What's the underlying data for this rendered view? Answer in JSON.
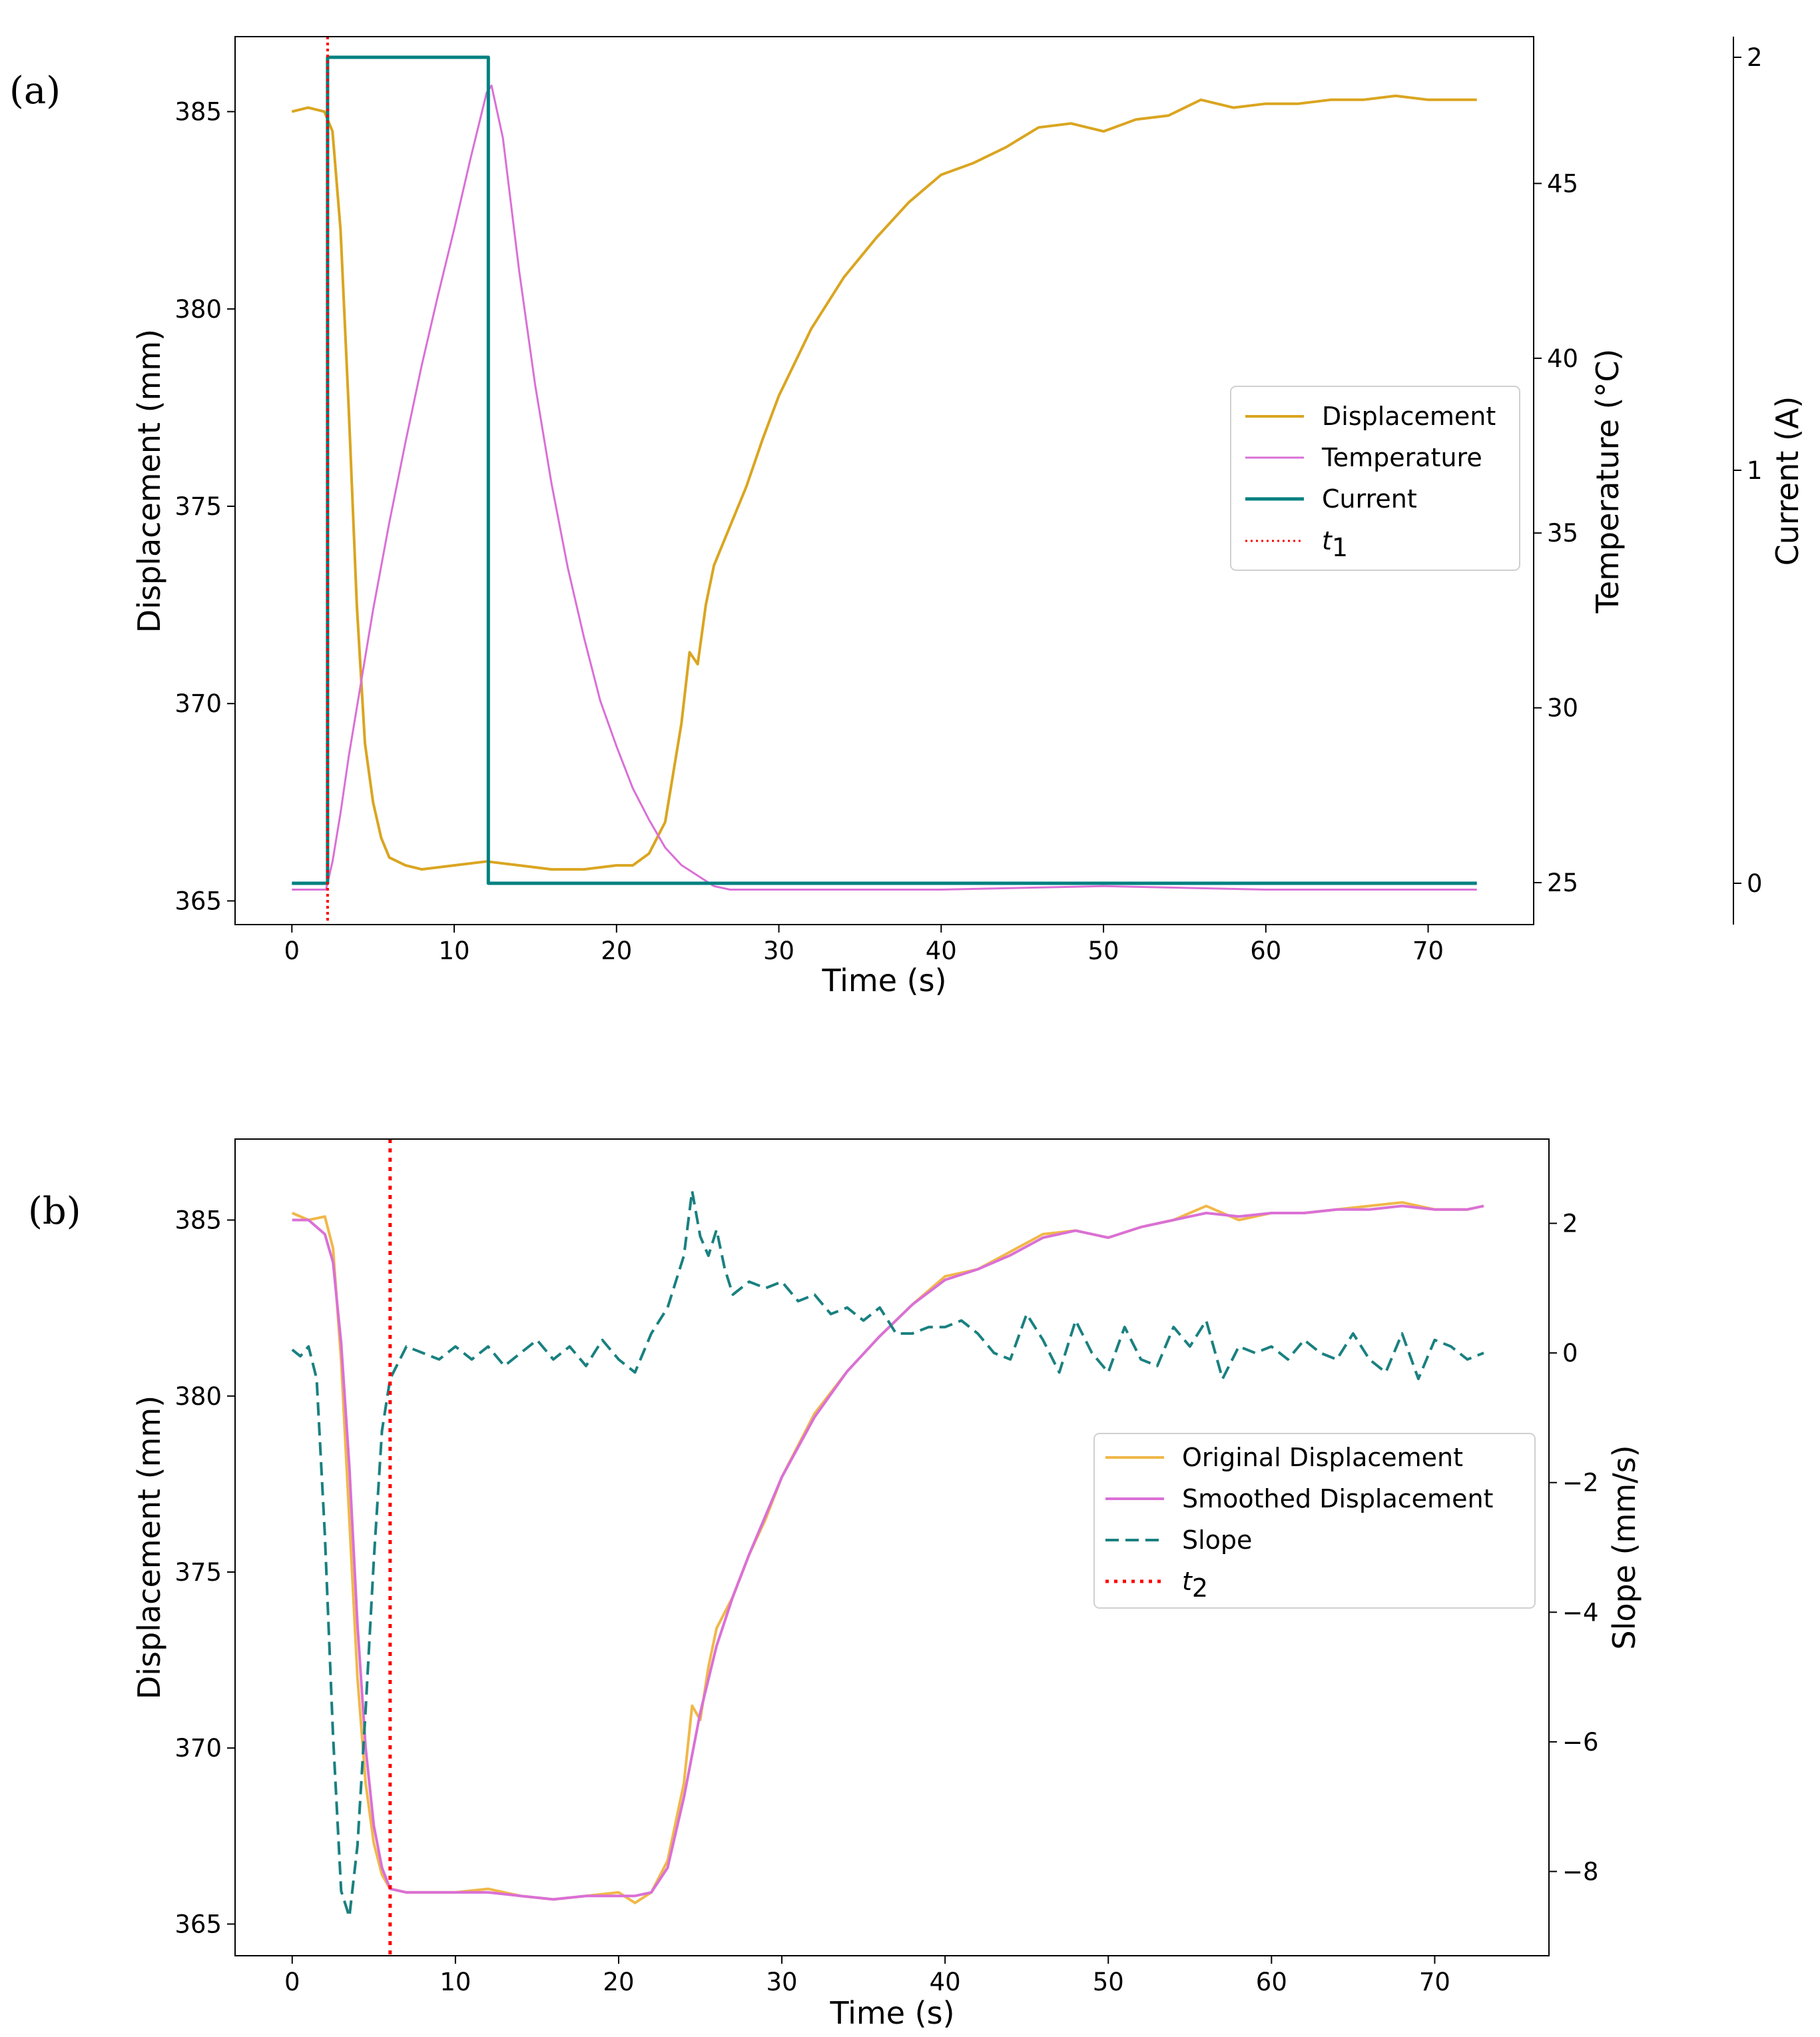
{
  "chart_data": [
    {
      "panel_label": "(a)",
      "type": "line",
      "xlabel": "Time (s)",
      "ylabel": "Displacement (mm)",
      "y2label": "Temperature (°C)",
      "y3label": "Current (A)",
      "xlim": [
        -3.5,
        76.5
      ],
      "ylim": [
        364.4,
        386.9
      ],
      "y2lim": [
        23.8,
        49.2
      ],
      "y3lim": [
        -0.1,
        2.05
      ],
      "xticks": [
        0,
        10,
        20,
        30,
        40,
        50,
        60,
        70
      ],
      "yticks": [
        365,
        370,
        375,
        380,
        385
      ],
      "y2ticks": [
        25,
        30,
        35,
        40,
        45
      ],
      "y3ticks": [
        0,
        1,
        2
      ],
      "legend_position": "center-right",
      "series": [
        {
          "name": "Displacement",
          "axis": "left",
          "color": "#daa520",
          "x": [
            0,
            1,
            2,
            2.5,
            3,
            3.5,
            4,
            4.5,
            5,
            5.5,
            6,
            7,
            8,
            10,
            12,
            14,
            16,
            18,
            20,
            21,
            22,
            23,
            24,
            24.5,
            25,
            25.5,
            26,
            27,
            28,
            29,
            30,
            32,
            34,
            36,
            38,
            40,
            42,
            44,
            46,
            48,
            50,
            52,
            54,
            56,
            58,
            60,
            62,
            64,
            66,
            68,
            70,
            72,
            73
          ],
          "values": [
            385.0,
            385.1,
            385.0,
            384.5,
            382.0,
            377.5,
            372.5,
            369.0,
            367.5,
            366.6,
            366.1,
            365.9,
            365.8,
            365.9,
            366.0,
            365.9,
            365.8,
            365.8,
            365.9,
            365.9,
            366.2,
            367.0,
            369.5,
            371.3,
            371.0,
            372.5,
            373.5,
            374.5,
            375.5,
            376.7,
            377.8,
            379.5,
            380.8,
            381.8,
            382.7,
            383.4,
            383.7,
            384.1,
            384.6,
            384.7,
            384.5,
            384.8,
            384.9,
            385.3,
            385.1,
            385.2,
            385.2,
            385.3,
            385.3,
            385.4,
            385.3,
            385.3,
            385.3
          ]
        },
        {
          "name": "Temperature",
          "axis": "temperature",
          "color": "#da70d6",
          "x": [
            0,
            2.1,
            2.5,
            3,
            3.5,
            4,
            5,
            6,
            7,
            8,
            9,
            10,
            11,
            12,
            12.3,
            13,
            14,
            15,
            16,
            17,
            18,
            19,
            20,
            21,
            22,
            23,
            24,
            25,
            26,
            27,
            30,
            40,
            50,
            60,
            73
          ],
          "values": [
            24.8,
            24.8,
            25.6,
            27.0,
            28.6,
            30.0,
            32.8,
            35.3,
            37.6,
            39.8,
            41.8,
            43.7,
            45.7,
            47.6,
            47.8,
            46.3,
            42.5,
            39.2,
            36.4,
            34.0,
            32.0,
            30.2,
            28.9,
            27.7,
            26.8,
            26.0,
            25.5,
            25.2,
            24.9,
            24.8,
            24.8,
            24.8,
            24.9,
            24.8,
            24.8
          ]
        },
        {
          "name": "Current",
          "axis": "current",
          "color": "#008080",
          "x": [
            0,
            2.2,
            2.2,
            12.1,
            12.1,
            73
          ],
          "values": [
            0,
            0,
            2,
            2,
            0,
            0
          ]
        }
      ],
      "annotations": [
        {
          "name": "t1",
          "label_base": "t",
          "label_sub": "1",
          "type": "vline",
          "x": 2.2,
          "color": "#ff0000"
        }
      ]
    },
    {
      "panel_label": "(b)",
      "type": "line",
      "xlabel": "Time (s)",
      "ylabel": "Displacement (mm)",
      "y2label": "Slope (mm/s)",
      "xlim": [
        -3.5,
        77
      ],
      "ylim": [
        364.1,
        387.3
      ],
      "y2lim": [
        -9.3,
        3.3
      ],
      "xticks": [
        0,
        10,
        20,
        30,
        40,
        50,
        60,
        70
      ],
      "yticks": [
        365,
        370,
        375,
        380,
        385
      ],
      "y2ticks": [
        -8,
        -6,
        -4,
        -2,
        0,
        2
      ],
      "y2ticklabels": [
        "−8",
        "−6",
        "−4",
        "−2",
        "0",
        "2"
      ],
      "legend_position": "center-right",
      "series": [
        {
          "name": "Original Displacement",
          "axis": "left",
          "color": "#f0b849",
          "x": [
            0,
            1,
            2,
            2.5,
            3,
            3.5,
            4,
            4.5,
            5,
            5.5,
            6,
            7,
            8,
            10,
            12,
            14,
            16,
            18,
            20,
            21,
            22,
            23,
            24,
            24.5,
            25,
            25.5,
            26,
            27,
            28,
            29,
            30,
            32,
            34,
            36,
            38,
            40,
            42,
            44,
            46,
            48,
            50,
            52,
            54,
            56,
            58,
            60,
            62,
            64,
            66,
            68,
            70,
            72,
            73
          ],
          "values": [
            385.2,
            385.0,
            385.1,
            384.2,
            381.0,
            376.5,
            372.0,
            369.0,
            367.3,
            366.4,
            366.0,
            365.9,
            365.9,
            365.9,
            366.0,
            365.8,
            365.7,
            365.8,
            365.9,
            365.6,
            365.9,
            366.8,
            369.0,
            371.2,
            370.8,
            372.3,
            373.4,
            374.3,
            375.5,
            376.5,
            377.7,
            379.5,
            380.7,
            381.7,
            382.6,
            383.4,
            383.6,
            384.1,
            384.6,
            384.7,
            384.5,
            384.8,
            385.0,
            385.4,
            385.0,
            385.2,
            385.2,
            385.3,
            385.4,
            385.5,
            385.3,
            385.3,
            385.4
          ]
        },
        {
          "name": "Smoothed Displacement",
          "axis": "left",
          "color": "#da70d6",
          "x": [
            0,
            1,
            2,
            2.5,
            3,
            3.5,
            4,
            4.5,
            5,
            5.5,
            6,
            7,
            8,
            10,
            12,
            14,
            16,
            18,
            20,
            21,
            22,
            23,
            24,
            25,
            26,
            27,
            28,
            30,
            32,
            34,
            36,
            38,
            40,
            42,
            44,
            46,
            48,
            50,
            52,
            54,
            56,
            58,
            60,
            62,
            64,
            66,
            68,
            70,
            72,
            73
          ],
          "values": [
            385.0,
            385.0,
            384.6,
            383.8,
            381.5,
            378.0,
            373.5,
            370.0,
            367.8,
            366.6,
            366.0,
            365.9,
            365.9,
            365.9,
            365.9,
            365.8,
            365.7,
            365.8,
            365.8,
            365.8,
            365.9,
            366.6,
            368.6,
            371.0,
            372.9,
            374.3,
            375.5,
            377.7,
            379.4,
            380.7,
            381.7,
            382.6,
            383.3,
            383.6,
            384.0,
            384.5,
            384.7,
            384.5,
            384.8,
            385.0,
            385.2,
            385.1,
            385.2,
            385.2,
            385.3,
            385.3,
            385.4,
            385.3,
            385.3,
            385.4
          ]
        },
        {
          "name": "Slope",
          "axis": "right",
          "color": "#1a8080",
          "dash": "dashed",
          "x": [
            0,
            0.5,
            1,
            1.5,
            2,
            2.5,
            3,
            3.5,
            4,
            4.5,
            5,
            5.5,
            6,
            7,
            8,
            9,
            10,
            11,
            12,
            13,
            14,
            15,
            16,
            17,
            18,
            19,
            20,
            21,
            22,
            23,
            24,
            24.5,
            25,
            25.5,
            26,
            26.5,
            27,
            28,
            29,
            30,
            31,
            32,
            33,
            34,
            35,
            36,
            37,
            38,
            39,
            40,
            41,
            42,
            43,
            44,
            45,
            46,
            47,
            48,
            49,
            50,
            51,
            52,
            53,
            54,
            55,
            56,
            57,
            58,
            59,
            60,
            61,
            62,
            63,
            64,
            65,
            66,
            67,
            68,
            69,
            70,
            71,
            72,
            73
          ],
          "values": [
            0.05,
            -0.05,
            0.1,
            -0.4,
            -2.8,
            -5.9,
            -8.3,
            -8.7,
            -7.6,
            -5.5,
            -3.2,
            -1.2,
            -0.4,
            0.1,
            0.0,
            -0.1,
            0.1,
            -0.1,
            0.1,
            -0.2,
            0.0,
            0.2,
            -0.1,
            0.1,
            -0.2,
            0.2,
            -0.1,
            -0.3,
            0.3,
            0.7,
            1.5,
            2.5,
            1.8,
            1.5,
            1.9,
            1.3,
            0.9,
            1.1,
            1.0,
            1.1,
            0.8,
            0.9,
            0.6,
            0.7,
            0.5,
            0.7,
            0.3,
            0.3,
            0.4,
            0.4,
            0.5,
            0.3,
            0.0,
            -0.1,
            0.6,
            0.2,
            -0.3,
            0.5,
            0.0,
            -0.3,
            0.4,
            -0.1,
            -0.2,
            0.4,
            0.1,
            0.5,
            -0.4,
            0.1,
            0.0,
            0.1,
            -0.1,
            0.2,
            0.0,
            -0.1,
            0.3,
            -0.1,
            -0.3,
            0.3,
            -0.4,
            0.2,
            0.1,
            -0.1,
            0.0
          ]
        }
      ],
      "annotations": [
        {
          "name": "t2",
          "label_base": "t",
          "label_sub": "2",
          "type": "vline",
          "x": 6.0,
          "color": "#ff0000"
        }
      ]
    }
  ]
}
